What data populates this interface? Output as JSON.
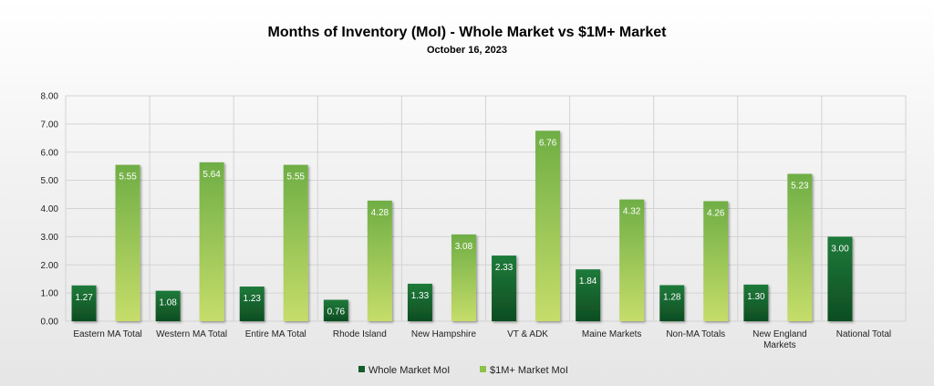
{
  "chart_data": {
    "type": "bar",
    "title": "Months of Inventory (MoI) - Whole Market vs $1M+ Market",
    "subtitle": "October 16, 2023",
    "categories": [
      "Eastern MA Total",
      "Western MA Total",
      "Entire MA Total",
      "Rhode Island",
      "New Hampshire",
      "VT & ADK",
      "Maine Markets",
      "Non-MA Totals",
      "New England Markets",
      "National Total"
    ],
    "series": [
      {
        "name": "Whole Market MoI",
        "values": [
          1.27,
          1.08,
          1.23,
          0.76,
          1.33,
          2.33,
          1.84,
          1.28,
          1.3,
          3.0
        ]
      },
      {
        "name": "$1M+ Market MoI",
        "values": [
          5.55,
          5.64,
          5.55,
          4.28,
          3.08,
          6.76,
          4.32,
          4.26,
          5.23,
          null
        ]
      }
    ],
    "ylim": [
      0,
      8
    ],
    "yticks": [
      "0.00",
      "1.00",
      "2.00",
      "3.00",
      "4.00",
      "5.00",
      "6.00",
      "7.00",
      "8.00"
    ],
    "grid": true,
    "legend_position": "bottom",
    "colors": {
      "whole_market_top": "#1f7a3a",
      "whole_market_bottom": "#0e4d22",
      "one_million_top": "#6fae45",
      "one_million_bottom": "#c6dd6a",
      "grid": "#d0d0d0"
    }
  }
}
